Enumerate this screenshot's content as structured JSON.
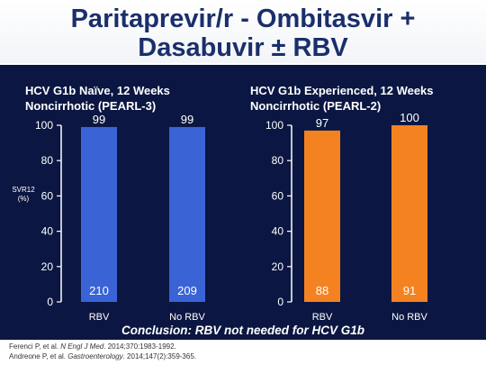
{
  "title": {
    "line1": "Paritaprevir/r - Ombitasvir +",
    "line2": "Dasabuvir ± RBV"
  },
  "colors": {
    "title_text": "#1a2f6b",
    "panel_background": "#0b1742",
    "blue_bar": "#3a63d6",
    "orange_bar": "#f58220"
  },
  "chart_data": [
    {
      "type": "bar",
      "title": "HCV G1b Naïve, 12 Weeks",
      "subtitle": "Noncirrhotic (PEARL-3)",
      "ylabel": "SVR12 (%)",
      "ylim": [
        0,
        100
      ],
      "yticks": [
        0,
        20,
        40,
        60,
        80,
        100
      ],
      "categories": [
        "RBV",
        "No RBV"
      ],
      "values": [
        99,
        99
      ],
      "value_labels": [
        "99",
        "99"
      ],
      "n_labels": [
        "210",
        "209"
      ],
      "color": "#3a63d6",
      "grid": false
    },
    {
      "type": "bar",
      "title": "HCV G1b Experienced, 12 Weeks",
      "subtitle": "Noncirrhotic (PEARL-2)",
      "ylim": [
        0,
        100
      ],
      "yticks": [
        0,
        20,
        40,
        60,
        80,
        100
      ],
      "categories": [
        "RBV",
        "No RBV"
      ],
      "values": [
        97,
        100
      ],
      "value_labels": [
        "97",
        "100"
      ],
      "n_labels": [
        "88",
        "91"
      ],
      "color": "#f58220",
      "grid": false
    }
  ],
  "conclusion": "Conclusion: RBV not needed for HCV G1b",
  "references": [
    {
      "authors": "Ferenci P, et al. ",
      "journal": "N Engl J Med",
      "rest": ". 2014;370:1983-1992."
    },
    {
      "authors": "Andreone P, et al. ",
      "journal": "Gastroenterology",
      "rest": ". 2014;147(2):359-365."
    }
  ]
}
